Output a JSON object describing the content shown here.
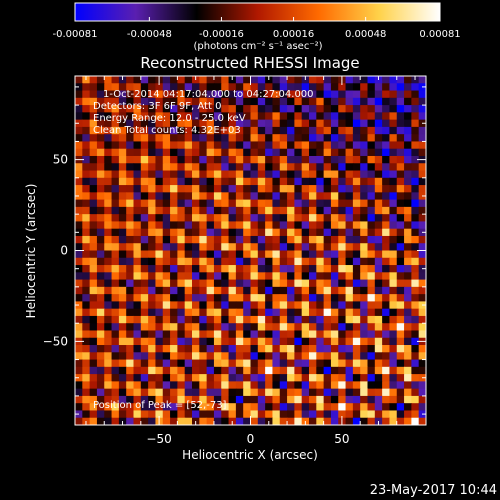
{
  "chart_data": {
    "type": "heatmap",
    "title": "Reconstructed RHESSI Image",
    "xlabel": "Heliocentric X (arcsec)",
    "ylabel": "Heliocentric Y (arcsec)",
    "xlim": [
      -96,
      96
    ],
    "ylim": [
      -96,
      96
    ],
    "xticks": [
      -50,
      0,
      50
    ],
    "yticks": [
      -50,
      0,
      50
    ],
    "colorbar": {
      "label": "(photons cm⁻² s⁻¹ asec⁻²)",
      "range": [
        -0.00081,
        0.00081
      ],
      "ticks": [
        "-0.00081",
        "-0.00048",
        "-0.00016",
        "0.00016",
        "0.00048",
        "0.00081"
      ],
      "colormap": [
        "#0000ff",
        "#5a1fb0",
        "#000000",
        "#b01800",
        "#ff6a00",
        "#ffd24a",
        "#ffffff"
      ]
    },
    "annotations": [
      "1-Oct-2014 04:17:04.000 to 04:27:04.000",
      "Detectors: 3F 6F 9F, Att 0",
      "Energy Range: 12.0 - 25.0 keV",
      "Clean     Total counts: 4.32E+03"
    ],
    "peak_label": "Position of Peak = [52,-73]",
    "peak_position": [
      52,
      -73
    ],
    "grid": false
  },
  "footer_date": "23-May-2017 10:44"
}
